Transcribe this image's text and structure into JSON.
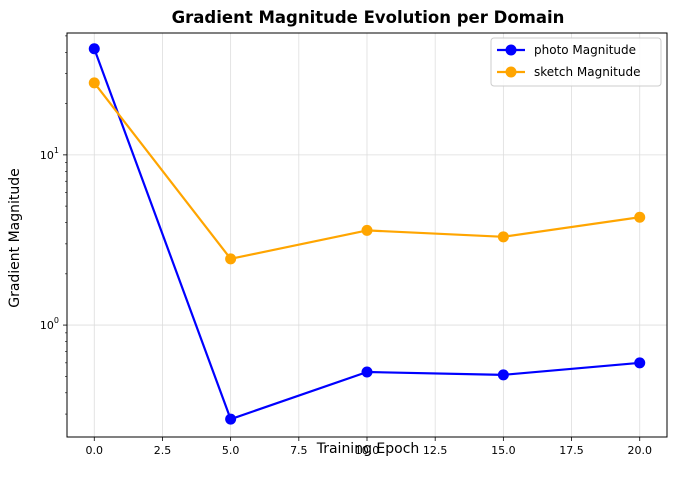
{
  "chart_data": {
    "type": "line",
    "title": "Gradient Magnitude Evolution per Domain",
    "xlabel": "Training Epoch",
    "ylabel": "Gradient Magnitude",
    "yscale": "log",
    "xlim": [
      -1,
      21
    ],
    "ylim": [
      0.22,
      52
    ],
    "x_ticks": [
      0.0,
      2.5,
      5.0,
      7.5,
      10.0,
      12.5,
      15.0,
      17.5,
      20.0
    ],
    "x_tick_labels": [
      "0.0",
      "2.5",
      "5.0",
      "7.5",
      "10.0",
      "12.5",
      "15.0",
      "17.5",
      "20.0"
    ],
    "y_major_ticks": [
      1,
      10
    ],
    "y_tick_labels": [
      "10^0",
      "10^1"
    ],
    "grid": true,
    "legend_position": "top-right",
    "x": [
      0,
      5,
      10,
      15,
      20
    ],
    "series": [
      {
        "name": "photo Magnitude",
        "color": "#0000ff",
        "values": [
          42.0,
          0.28,
          0.53,
          0.51,
          0.6
        ]
      },
      {
        "name": "sketch Magnitude",
        "color": "#ffa500",
        "values": [
          26.5,
          2.45,
          3.6,
          3.3,
          4.3
        ]
      }
    ]
  }
}
